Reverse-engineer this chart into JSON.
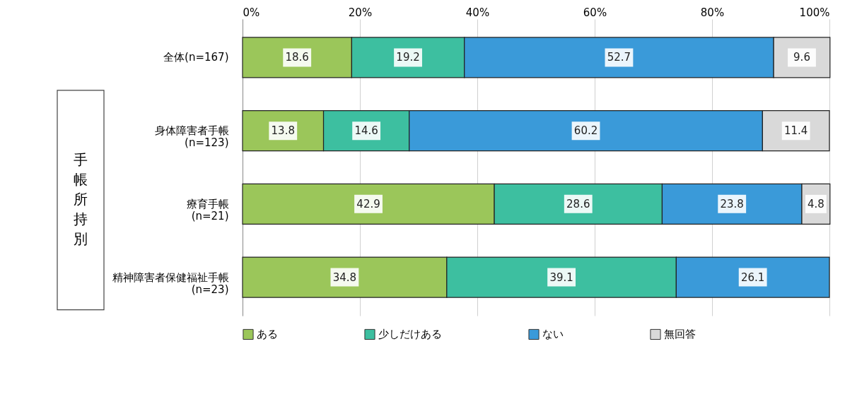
{
  "chart_data": {
    "type": "bar",
    "orientation": "horizontal",
    "stacked": true,
    "categories": [
      "全体(n=167)",
      "身体障害者手帳\n(n=123)",
      "療育手帳\n(n=21)",
      "精神障害者保健福祉手帳\n(n=23)"
    ],
    "series": [
      {
        "name": "ある",
        "color": "#9bc65a",
        "values": [
          18.6,
          13.8,
          42.9,
          34.8
        ]
      },
      {
        "name": "少しだけある",
        "color": "#3dbfa0",
        "values": [
          19.2,
          14.6,
          28.6,
          39.1
        ]
      },
      {
        "name": "ない",
        "color": "#3a9ad9",
        "values": [
          52.7,
          60.2,
          23.8,
          26.1
        ]
      },
      {
        "name": "無回答",
        "color": "#d9d9d9",
        "values": [
          9.6,
          11.4,
          4.8,
          null
        ]
      }
    ],
    "xlim": [
      0,
      100
    ],
    "xticks": [
      {
        "value": 0,
        "label": "0%"
      },
      {
        "value": 20,
        "label": "20%"
      },
      {
        "value": 40,
        "label": "40%"
      },
      {
        "value": 60,
        "label": "60%"
      },
      {
        "value": 80,
        "label": "80%"
      },
      {
        "value": 100,
        "label": "100%"
      }
    ],
    "grid": "x",
    "legend": "bottom",
    "data_labels": true,
    "annotations": [
      "手帳所持別"
    ]
  }
}
